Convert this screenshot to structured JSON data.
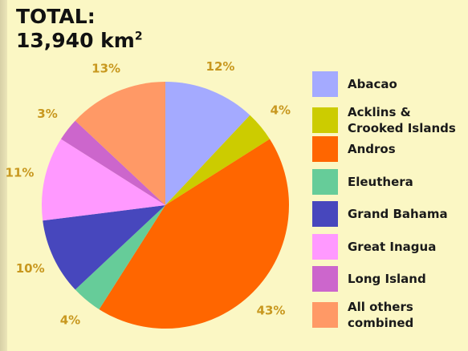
{
  "header": {
    "line1": "TOTAL:",
    "line2": "13,940 km",
    "sup": "2"
  },
  "chart_data": {
    "type": "pie",
    "title": "TOTAL: 13,940 km²",
    "start_angle_deg": 0,
    "direction": "clockwise",
    "legend_position": "right",
    "series": [
      {
        "name": "Abacao",
        "value": 12,
        "label": "12%",
        "color": "#a4aaff"
      },
      {
        "name": "Acklins &\nCrooked Islands",
        "value": 4,
        "label": "4%",
        "color": "#cccc00"
      },
      {
        "name": "Andros",
        "value": 43,
        "label": "43%",
        "color": "#ff6600"
      },
      {
        "name": "Eleuthera",
        "value": 4,
        "label": "4%",
        "color": "#66cc99"
      },
      {
        "name": "Grand Bahama",
        "value": 10,
        "label": "10%",
        "color": "#4747bd"
      },
      {
        "name": "Great Inagua",
        "value": 11,
        "label": "11%",
        "color": "#ff99ff"
      },
      {
        "name": "Long Island",
        "value": 3,
        "label": "3%",
        "color": "#cc66cc"
      },
      {
        "name": "All others\ncombined",
        "value": 13,
        "label": "13%",
        "color": "#ff9966"
      }
    ]
  }
}
